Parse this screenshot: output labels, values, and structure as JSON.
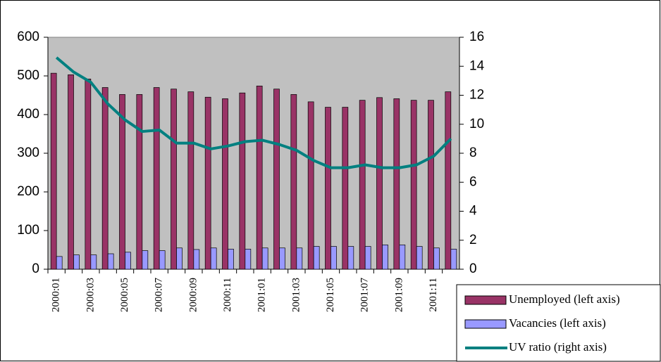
{
  "chart_data": {
    "type": "bar",
    "categories": [
      "2000:01",
      null,
      "2000:03",
      null,
      "2000:05",
      null,
      "2000:07",
      null,
      "2000:09",
      null,
      "2000:11",
      null,
      "2001:01",
      null,
      "2001:03",
      null,
      "2001:05",
      null,
      "2001:07",
      null,
      "2001:09",
      null,
      "2001:11",
      null
    ],
    "series": [
      {
        "name": "Unemployed (left axis)",
        "type": "bar",
        "color": "#993366",
        "values": [
          507,
          503,
          492,
          470,
          452,
          452,
          470,
          466,
          459,
          445,
          441,
          456,
          474,
          466,
          452,
          433,
          419,
          419,
          437,
          444,
          441,
          437,
          437,
          459
        ]
      },
      {
        "name": "Vacancies (left axis)",
        "type": "bar",
        "color": "#9999ff",
        "values": [
          33,
          37,
          37,
          40,
          44,
          48,
          48,
          55,
          51,
          55,
          52,
          52,
          55,
          55,
          55,
          59,
          59,
          59,
          59,
          63,
          63,
          59,
          55,
          52
        ]
      },
      {
        "name": "UV ratio (right axis)",
        "type": "line",
        "axis": "y2",
        "color": "#008080",
        "values": [
          14.6,
          13.6,
          12.9,
          11.4,
          10.3,
          9.5,
          9.6,
          8.7,
          8.7,
          8.3,
          8.5,
          8.8,
          8.9,
          8.6,
          8.2,
          7.5,
          7.0,
          7.0,
          7.2,
          7.0,
          7.0,
          7.2,
          7.8,
          9.0
        ]
      }
    ],
    "ylim": [
      0,
      600
    ],
    "yticks": [
      0,
      100,
      200,
      300,
      400,
      500,
      600
    ],
    "y2lim": [
      0,
      16
    ],
    "y2ticks": [
      0,
      2,
      4,
      6,
      8,
      10,
      12,
      14,
      16
    ],
    "plot_background": "#c0c0c0",
    "legend": "bottom-right"
  }
}
